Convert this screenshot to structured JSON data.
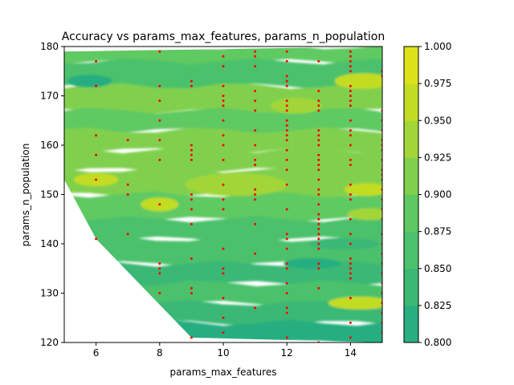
{
  "chart_data": {
    "type": "heatmap",
    "subtype": "filled-contour-with-sample-points",
    "title": "Accuracy vs params_max_features, params_n_population",
    "xlabel": "params_max_features",
    "ylabel": "params_n_population",
    "xlim": [
      5,
      15
    ],
    "ylim": [
      120,
      180
    ],
    "x_ticks": [
      "6",
      "8",
      "10",
      "12",
      "14"
    ],
    "y_ticks": [
      "120",
      "130",
      "140",
      "150",
      "160",
      "170",
      "180"
    ],
    "colorbar": {
      "ticks": [
        "0.800",
        "0.825",
        "0.850",
        "0.875",
        "0.900",
        "0.925",
        "0.950",
        "0.975",
        "1.000"
      ],
      "range": [
        0.8,
        1.0
      ],
      "levels": [
        0.8,
        0.825,
        0.85,
        0.875,
        0.9,
        0.925,
        0.95,
        0.975,
        1.0
      ],
      "colors": [
        "#28ae80",
        "#3bb874",
        "#4cc16c",
        "#5ec962",
        "#80d04d",
        "#a2d637",
        "#c2dc24",
        "#dde11a",
        "#f0e41c"
      ]
    },
    "hull_boundary": [
      [
        5,
        153
      ],
      [
        6,
        141
      ],
      [
        9,
        121
      ],
      [
        15,
        120
      ],
      [
        15,
        180
      ],
      [
        5,
        179
      ]
    ],
    "bands": [
      {
        "ylim": [
          177,
          180
        ],
        "value": 0.88
      },
      {
        "ylim": [
          172,
          177
        ],
        "value": 0.86
      },
      {
        "ylim": [
          167,
          172
        ],
        "value": 0.9
      },
      {
        "ylim": [
          163,
          167
        ],
        "value": 0.88
      },
      {
        "ylim": [
          159,
          163
        ],
        "value": 0.9
      },
      {
        "ylim": [
          155,
          159
        ],
        "value": 0.92
      },
      {
        "ylim": [
          150,
          155
        ],
        "value": 0.91
      },
      {
        "ylim": [
          145,
          150
        ],
        "value": 0.89
      },
      {
        "ylim": [
          141,
          145
        ],
        "value": 0.87
      },
      {
        "ylim": [
          136,
          141
        ],
        "value": 0.85
      },
      {
        "ylim": [
          132,
          136
        ],
        "value": 0.84
      },
      {
        "ylim": [
          128,
          132
        ],
        "value": 0.86
      },
      {
        "ylim": [
          124,
          128
        ],
        "value": 0.84
      },
      {
        "ylim": [
          120,
          124
        ],
        "value": 0.82
      }
    ],
    "blobs": [
      {
        "x": 10.4,
        "y": 152,
        "rx": 1.6,
        "ry": 2.3,
        "value": 0.93
      },
      {
        "x": 8.0,
        "y": 148,
        "rx": 0.6,
        "ry": 1.4,
        "value": 0.96
      },
      {
        "x": 6.0,
        "y": 153,
        "rx": 0.7,
        "ry": 1.3,
        "value": 0.95
      },
      {
        "x": 14.4,
        "y": 173,
        "rx": 0.9,
        "ry": 1.6,
        "value": 0.97
      },
      {
        "x": 12.3,
        "y": 168,
        "rx": 0.8,
        "ry": 1.6,
        "value": 0.94
      },
      {
        "x": 14.5,
        "y": 151,
        "rx": 0.7,
        "ry": 1.3,
        "value": 0.95
      },
      {
        "x": 14.6,
        "y": 146,
        "rx": 0.7,
        "ry": 1.2,
        "value": 0.94
      },
      {
        "x": 14.3,
        "y": 128,
        "rx": 1.0,
        "ry": 1.3,
        "value": 0.97
      },
      {
        "x": 13.8,
        "y": 140,
        "rx": 1.1,
        "ry": 1.2,
        "value": 0.84
      },
      {
        "x": 12.8,
        "y": 136,
        "rx": 0.9,
        "ry": 1.1,
        "value": 0.82
      },
      {
        "x": 12.6,
        "y": 126,
        "rx": 0.9,
        "ry": 1.1,
        "value": 0.83
      },
      {
        "x": 5.8,
        "y": 173,
        "rx": 0.7,
        "ry": 1.3,
        "value": 0.82
      },
      {
        "x": 11.8,
        "y": 122,
        "rx": 1.0,
        "ry": 1.2,
        "value": 0.81
      },
      {
        "x": 9.3,
        "y": 161,
        "rx": 0.8,
        "ry": 1.2,
        "value": 0.92
      }
    ],
    "points": [
      [
        6,
        177
      ],
      [
        6,
        172
      ],
      [
        6,
        162
      ],
      [
        6,
        158
      ],
      [
        6,
        153
      ],
      [
        6,
        141
      ],
      [
        7,
        161
      ],
      [
        7,
        152
      ],
      [
        7,
        150
      ],
      [
        7,
        142
      ],
      [
        8,
        179
      ],
      [
        8,
        172
      ],
      [
        8,
        169
      ],
      [
        8,
        165
      ],
      [
        8,
        161
      ],
      [
        8,
        157
      ],
      [
        8,
        148
      ],
      [
        8,
        136
      ],
      [
        8,
        135
      ],
      [
        8,
        134
      ],
      [
        8,
        130
      ],
      [
        9,
        173
      ],
      [
        9,
        172
      ],
      [
        9,
        160
      ],
      [
        9,
        159
      ],
      [
        9,
        158
      ],
      [
        9,
        157
      ],
      [
        9,
        150
      ],
      [
        9,
        149
      ],
      [
        9,
        147
      ],
      [
        9,
        144
      ],
      [
        9,
        137
      ],
      [
        9,
        131
      ],
      [
        9,
        130
      ],
      [
        9,
        121
      ],
      [
        10,
        178
      ],
      [
        10,
        176
      ],
      [
        10,
        172
      ],
      [
        10,
        170
      ],
      [
        10,
        169
      ],
      [
        10,
        168
      ],
      [
        10,
        165
      ],
      [
        10,
        162
      ],
      [
        10,
        160
      ],
      [
        10,
        157
      ],
      [
        10,
        152
      ],
      [
        10,
        149
      ],
      [
        10,
        147
      ],
      [
        10,
        139
      ],
      [
        10,
        135
      ],
      [
        10,
        134
      ],
      [
        10,
        129
      ],
      [
        10,
        125
      ],
      [
        10,
        122
      ],
      [
        11,
        179
      ],
      [
        11,
        178
      ],
      [
        11,
        176
      ],
      [
        11,
        171
      ],
      [
        11,
        169
      ],
      [
        11,
        167
      ],
      [
        11,
        163
      ],
      [
        11,
        160
      ],
      [
        11,
        157
      ],
      [
        11,
        156
      ],
      [
        11,
        151
      ],
      [
        11,
        150
      ],
      [
        11,
        149
      ],
      [
        11,
        144
      ],
      [
        11,
        138
      ],
      [
        11,
        127
      ],
      [
        12,
        179
      ],
      [
        12,
        177
      ],
      [
        12,
        174
      ],
      [
        12,
        173
      ],
      [
        12,
        172
      ],
      [
        12,
        169
      ],
      [
        12,
        168
      ],
      [
        12,
        167
      ],
      [
        12,
        165
      ],
      [
        12,
        164
      ],
      [
        12,
        163
      ],
      [
        12,
        162
      ],
      [
        12,
        161
      ],
      [
        12,
        159
      ],
      [
        12,
        157
      ],
      [
        12,
        155
      ],
      [
        12,
        152
      ],
      [
        12,
        147
      ],
      [
        12,
        142
      ],
      [
        12,
        141
      ],
      [
        12,
        139
      ],
      [
        12,
        136
      ],
      [
        12,
        135
      ],
      [
        12,
        132
      ],
      [
        12,
        130
      ],
      [
        12,
        127
      ],
      [
        12,
        126
      ],
      [
        12,
        121
      ],
      [
        13,
        177
      ],
      [
        13,
        171
      ],
      [
        13,
        169
      ],
      [
        13,
        168
      ],
      [
        13,
        167
      ],
      [
        13,
        163
      ],
      [
        13,
        162
      ],
      [
        13,
        161
      ],
      [
        13,
        160
      ],
      [
        13,
        158
      ],
      [
        13,
        157
      ],
      [
        13,
        156
      ],
      [
        13,
        155
      ],
      [
        13,
        153
      ],
      [
        13,
        151
      ],
      [
        13,
        150
      ],
      [
        13,
        148
      ],
      [
        13,
        146
      ],
      [
        13,
        145
      ],
      [
        13,
        144
      ],
      [
        13,
        143
      ],
      [
        13,
        142
      ],
      [
        13,
        141
      ],
      [
        13,
        140
      ],
      [
        13,
        139
      ],
      [
        13,
        136
      ],
      [
        13,
        135
      ],
      [
        13,
        131
      ],
      [
        13,
        120
      ],
      [
        14,
        179
      ],
      [
        14,
        178
      ],
      [
        14,
        177
      ],
      [
        14,
        176
      ],
      [
        14,
        175
      ],
      [
        14,
        172
      ],
      [
        14,
        171
      ],
      [
        14,
        170
      ],
      [
        14,
        169
      ],
      [
        14,
        168
      ],
      [
        14,
        165
      ],
      [
        14,
        163
      ],
      [
        14,
        162
      ],
      [
        14,
        160
      ],
      [
        14,
        157
      ],
      [
        14,
        156
      ],
      [
        14,
        152
      ],
      [
        14,
        150
      ],
      [
        14,
        149
      ],
      [
        14,
        145
      ],
      [
        14,
        142
      ],
      [
        14,
        140
      ],
      [
        14,
        137
      ],
      [
        14,
        136
      ],
      [
        14,
        135
      ],
      [
        14,
        134
      ],
      [
        14,
        133
      ],
      [
        14,
        129
      ],
      [
        14,
        124
      ],
      [
        14,
        121
      ],
      [
        15,
        175
      ],
      [
        15,
        174
      ],
      [
        15,
        167
      ],
      [
        15,
        165
      ],
      [
        15,
        163
      ],
      [
        15,
        161
      ],
      [
        15,
        160
      ],
      [
        15,
        159
      ],
      [
        15,
        157
      ],
      [
        15,
        155
      ],
      [
        15,
        154
      ],
      [
        15,
        153
      ],
      [
        15,
        151
      ],
      [
        15,
        149
      ],
      [
        15,
        147
      ],
      [
        15,
        145
      ],
      [
        15,
        142
      ],
      [
        15,
        140
      ],
      [
        15,
        138
      ],
      [
        15,
        136
      ],
      [
        15,
        134
      ],
      [
        15,
        132
      ],
      [
        15,
        130
      ],
      [
        15,
        128
      ],
      [
        15,
        126
      ],
      [
        15,
        124
      ],
      [
        15,
        122
      ]
    ],
    "point_color": "#ff0000",
    "grid": false,
    "legend": "colorbar-right"
  }
}
